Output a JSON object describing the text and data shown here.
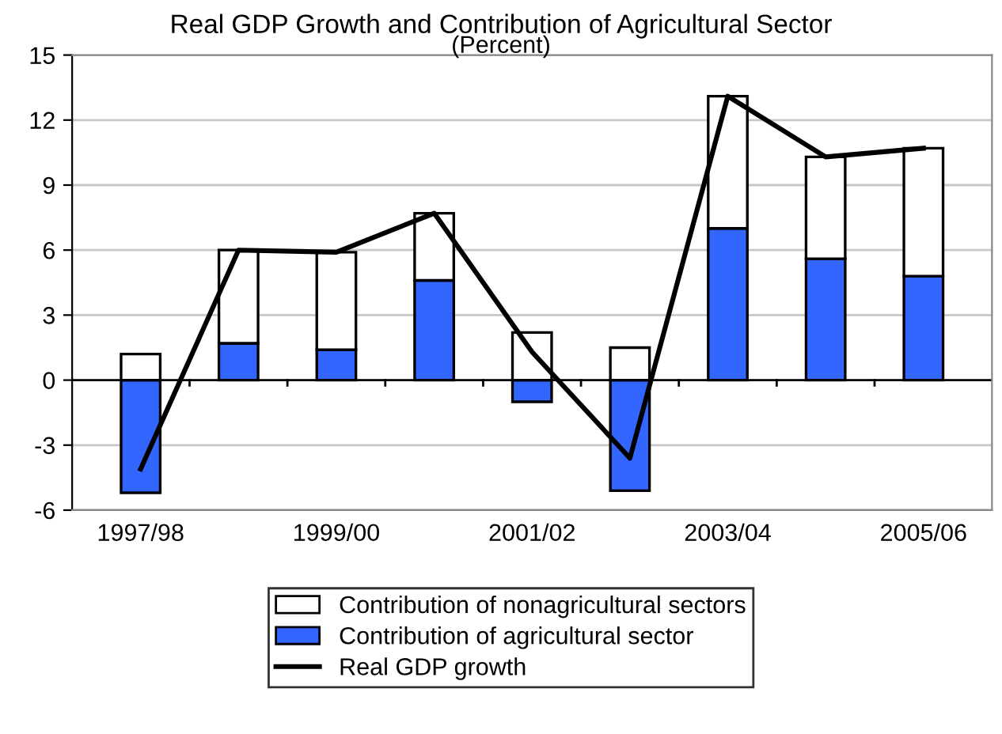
{
  "chart_data": {
    "type": "bar",
    "title": "Real GDP Growth and Contribution of Agricultural Sector",
    "subtitle": "(Percent)",
    "categories": [
      "1997/98",
      null,
      "1999/00",
      null,
      "2001/02",
      null,
      "2003/04",
      null,
      "2005/06"
    ],
    "stacked": true,
    "series": [
      {
        "name": "Contribution of agricultural sector",
        "color": "#3366ff",
        "values": [
          -5.2,
          1.7,
          1.4,
          4.6,
          -1.0,
          -5.1,
          7.0,
          5.6,
          4.8
        ]
      },
      {
        "name": "Contribution of nonagricultural sectors",
        "color": "#ffffff",
        "values": [
          1.2,
          4.3,
          4.5,
          3.1,
          2.2,
          1.5,
          6.1,
          4.7,
          5.9
        ]
      },
      {
        "name": "Real GDP growth",
        "type": "line",
        "color": "#000000",
        "values": [
          -4.1,
          6.0,
          5.9,
          7.7,
          1.3,
          -3.6,
          13.1,
          10.3,
          10.7
        ]
      }
    ],
    "ylim": [
      -6,
      15
    ],
    "yticks": [
      -6,
      -3,
      0,
      3,
      6,
      9,
      12,
      15
    ],
    "grid": "y",
    "legend": "bottom",
    "marker": "none",
    "line_style": "solid"
  }
}
